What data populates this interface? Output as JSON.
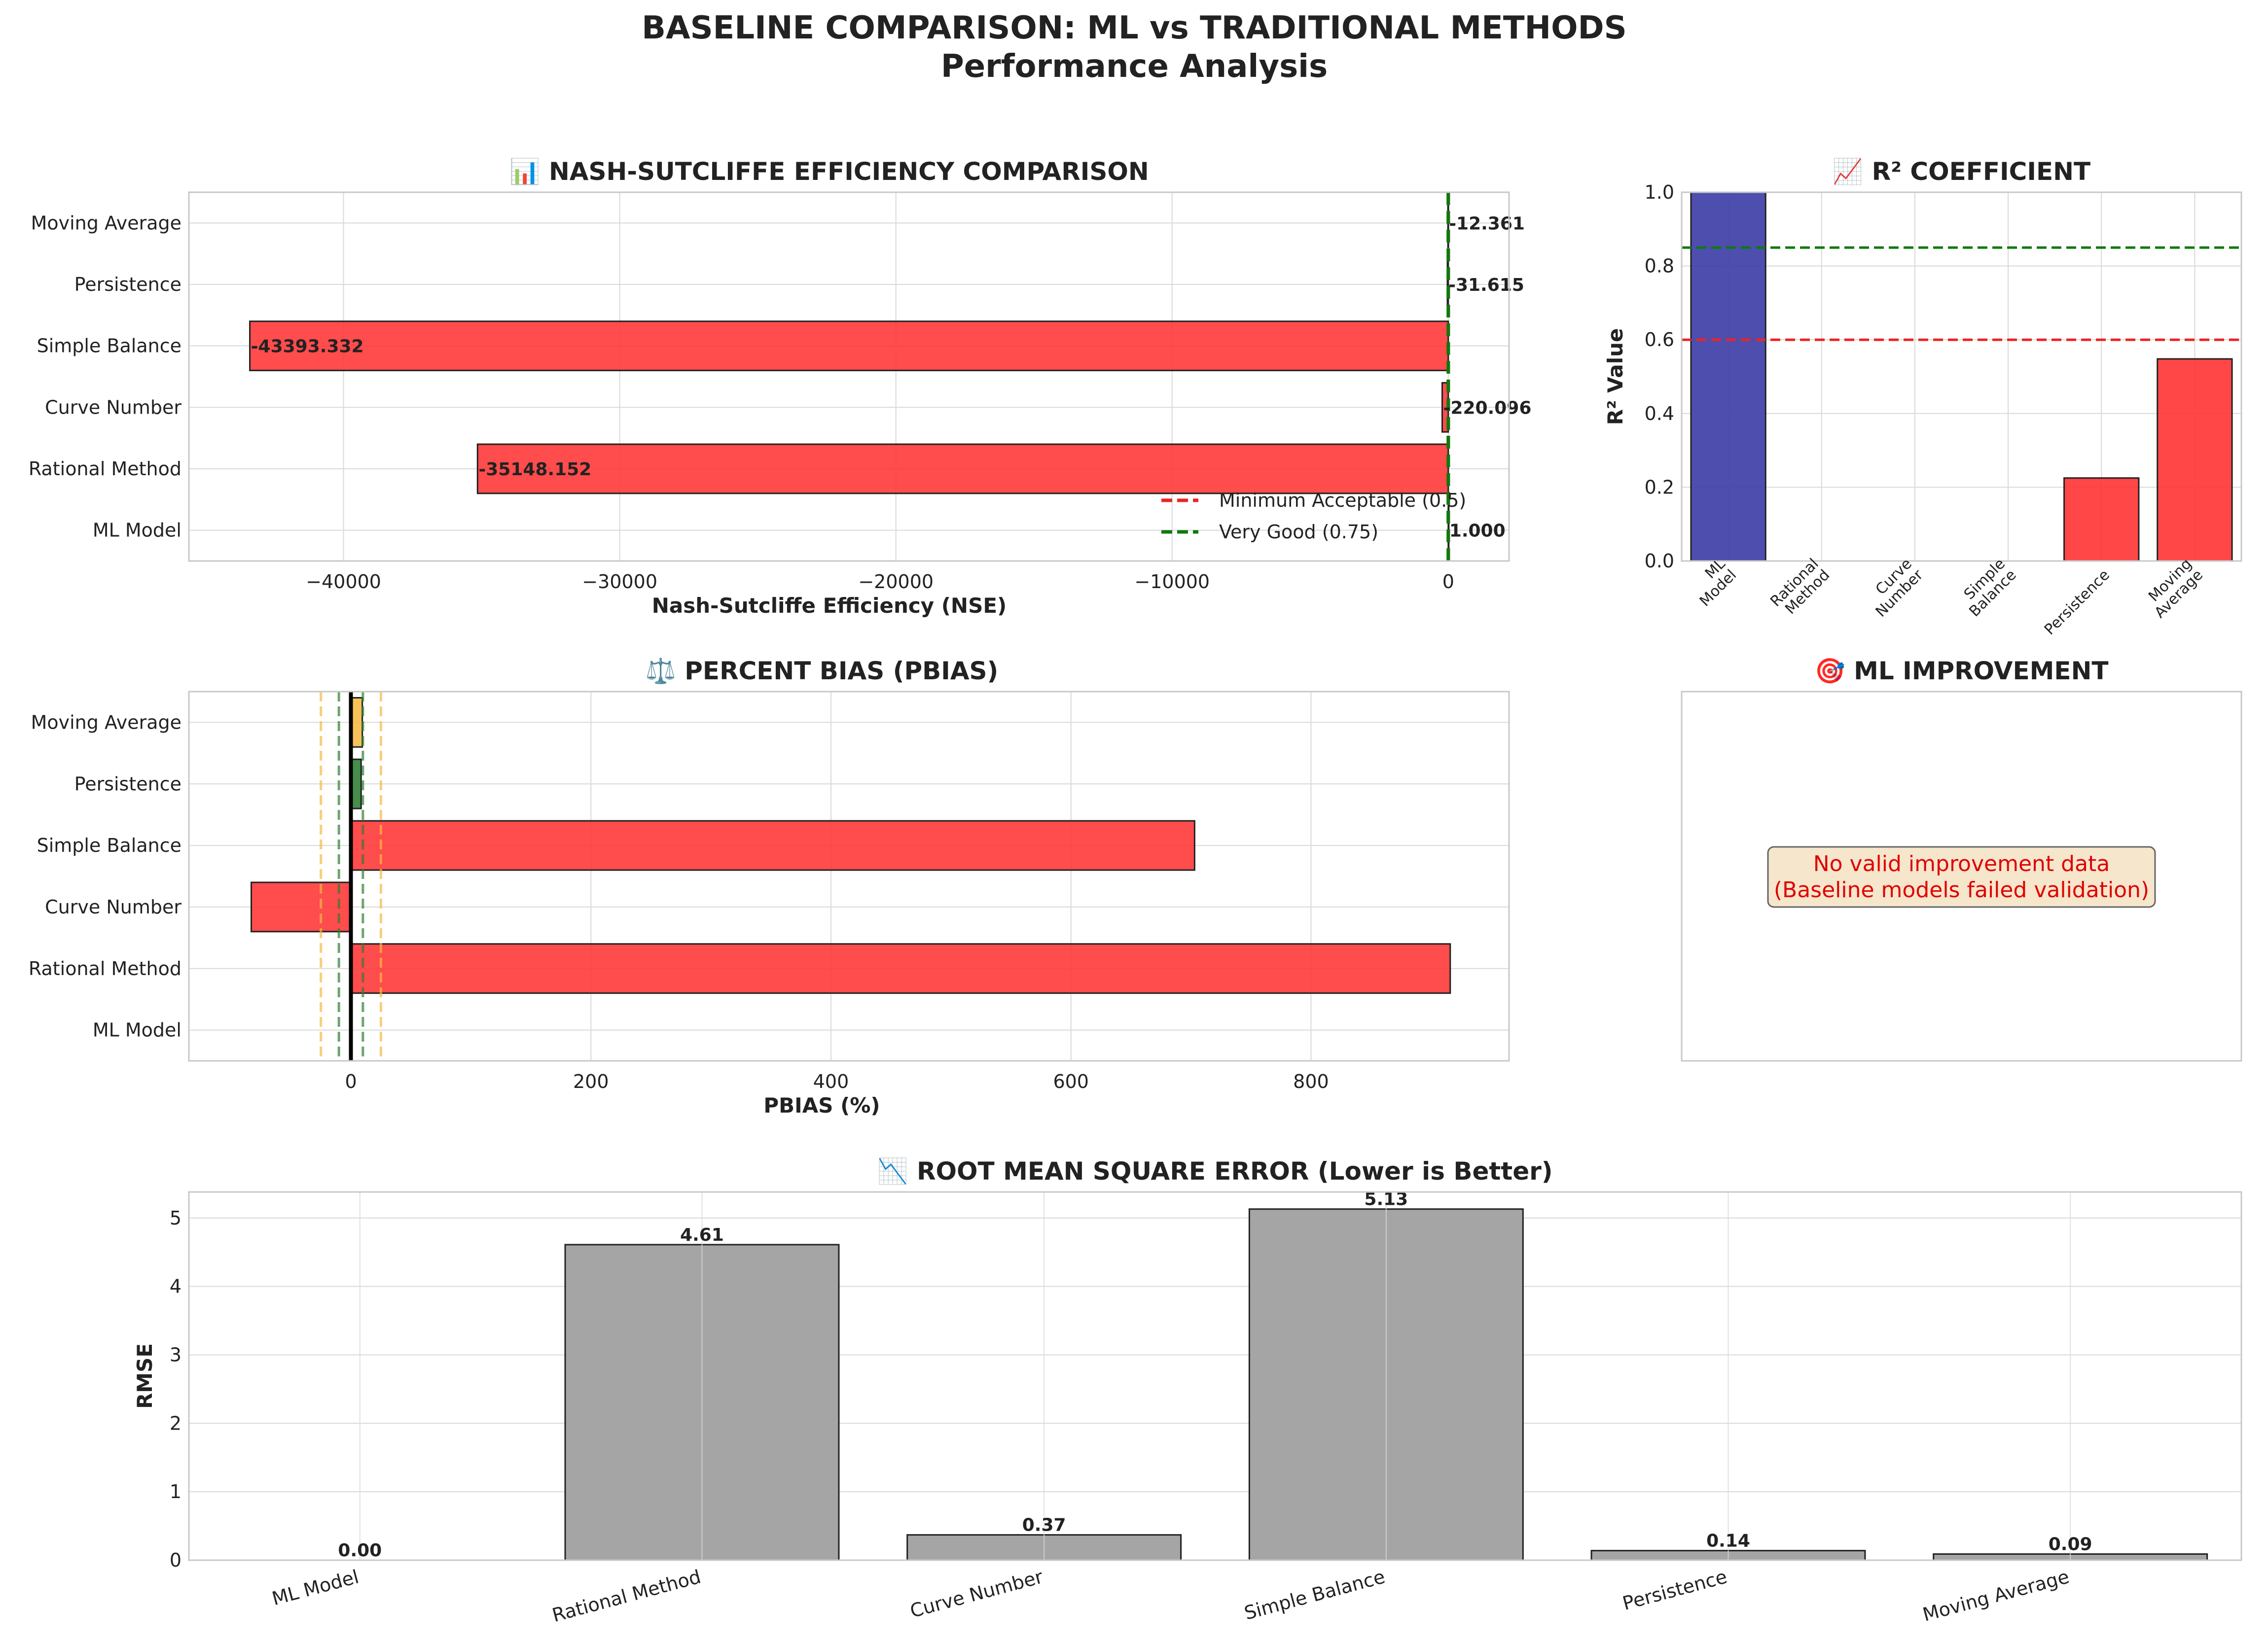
{
  "figure": {
    "title_line1": "BASELINE COMPARISON: ML vs TRADITIONAL METHODS",
    "title_line2": "Performance Analysis"
  },
  "colors": {
    "red": "#ff3333",
    "blue": "#3b3ba6",
    "green": "#2e7d32",
    "orange": "#f5b942",
    "gray": "#a5a5a5",
    "ref_red": "#ee2222",
    "ref_green": "#0d7a0d"
  },
  "chart_data": [
    {
      "id": "nse",
      "type": "bar",
      "orientation": "horizontal",
      "title": "📊 NASH-SUTCLIFFE EFFICIENCY COMPARISON",
      "xlabel": "Nash-Sutcliffe Efficiency (NSE)",
      "ylabel": "",
      "categories": [
        "ML Model",
        "Rational Method",
        "Curve Number",
        "Simple Balance",
        "Persistence",
        "Moving Average"
      ],
      "values": [
        1.0,
        -35148.152,
        -220.096,
        -43393.332,
        -31.615,
        -12.361
      ],
      "value_labels": [
        "1.000",
        "-35148.152",
        "-220.096",
        "-43393.332",
        "-31.615",
        "-12.361"
      ],
      "bar_colors": [
        "green",
        "red",
        "red",
        "red",
        "red",
        "red"
      ],
      "xlim": [
        -45600,
        2200
      ],
      "xticks": [
        -40000,
        -30000,
        -20000,
        -10000,
        0
      ],
      "xtick_labels": [
        "−40000",
        "−30000",
        "−20000",
        "−10000",
        "0"
      ],
      "reference_lines": [
        {
          "value": 0.5,
          "label": "Minimum Acceptable (0.5)",
          "color": "ref_red"
        },
        {
          "value": 0.75,
          "label": "Very Good (0.75)",
          "color": "ref_green"
        }
      ],
      "legend_position": "lower right"
    },
    {
      "id": "r2",
      "type": "bar",
      "title": "📈 R² COEFFICIENT",
      "xlabel": "",
      "ylabel": "R² Value",
      "categories": [
        "ML\nModel",
        "Rational\nMethod",
        "Curve\nNumber",
        "Simple\nBalance",
        "Persistence",
        "Moving\nAverage"
      ],
      "values": [
        1.0,
        0.0,
        0.0,
        0.0,
        0.225,
        0.548
      ],
      "bar_colors": [
        "blue",
        "red",
        "red",
        "red",
        "red",
        "red"
      ],
      "ylim": [
        0,
        1.0
      ],
      "yticks": [
        0.0,
        0.2,
        0.4,
        0.6,
        0.8,
        1.0
      ],
      "ytick_labels": [
        "0.0",
        "0.2",
        "0.4",
        "0.6",
        "0.8",
        "1.0"
      ],
      "reference_lines": [
        {
          "value": 0.6,
          "color": "ref_red"
        },
        {
          "value": 0.85,
          "color": "ref_green"
        }
      ]
    },
    {
      "id": "pbias",
      "type": "bar",
      "orientation": "horizontal",
      "title": "⚖️ PERCENT BIAS (PBIAS)",
      "xlabel": "PBIAS (%)",
      "ylabel": "",
      "categories": [
        "ML Model",
        "Rational Method",
        "Curve Number",
        "Simple Balance",
        "Persistence",
        "Moving Average"
      ],
      "values": [
        0.0,
        916.0,
        -83.0,
        703.0,
        8.5,
        9.5
      ],
      "bar_colors": [
        "green",
        "red",
        "red",
        "red",
        "green",
        "orange"
      ],
      "xlim": [
        -135,
        965
      ],
      "xticks": [
        0,
        200,
        400,
        600,
        800
      ],
      "xtick_labels": [
        "0",
        "200",
        "400",
        "600",
        "800"
      ],
      "reference_lines": [
        {
          "value": 0,
          "color": "black"
        },
        {
          "value": -10,
          "color": "green"
        },
        {
          "value": 10,
          "color": "green"
        },
        {
          "value": -25,
          "color": "orange"
        },
        {
          "value": 25,
          "color": "orange"
        }
      ]
    },
    {
      "id": "improvement",
      "type": "table",
      "title": "🎯 ML IMPROVEMENT",
      "message_line1": "No valid improvement data",
      "message_line2": "(Baseline models failed validation)"
    },
    {
      "id": "rmse",
      "type": "bar",
      "title": "📉 ROOT MEAN SQUARE ERROR (Lower is Better)",
      "xlabel": "",
      "ylabel": "RMSE",
      "categories": [
        "ML Model",
        "Rational Method",
        "Curve Number",
        "Simple Balance",
        "Persistence",
        "Moving Average"
      ],
      "values": [
        0.0,
        4.61,
        0.37,
        5.13,
        0.14,
        0.09
      ],
      "value_labels": [
        "0.00",
        "4.61",
        "0.37",
        "5.13",
        "0.14",
        "0.09"
      ],
      "ylim": [
        0,
        5.38
      ],
      "yticks": [
        0,
        1,
        2,
        3,
        4,
        5
      ],
      "ytick_labels": [
        "0",
        "1",
        "2",
        "3",
        "4",
        "5"
      ]
    }
  ]
}
